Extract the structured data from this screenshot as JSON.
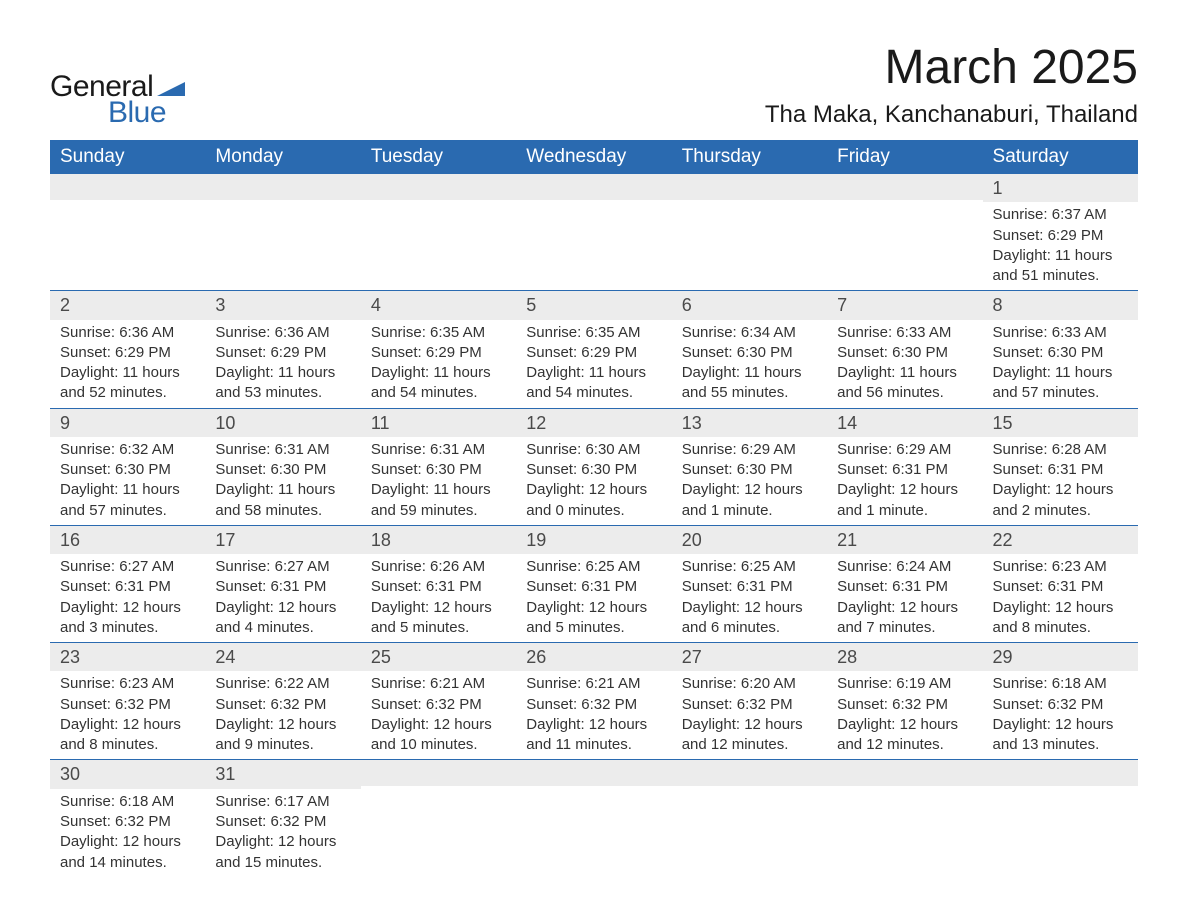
{
  "logo": {
    "text_general": "General",
    "text_blue": "Blue",
    "flag_color": "#2a6ab0"
  },
  "header": {
    "month_title": "March 2025",
    "location": "Tha Maka, Kanchanaburi, Thailand",
    "title_fontsize": 48,
    "location_fontsize": 24
  },
  "colors": {
    "header_bg": "#2a6ab0",
    "header_text": "#ffffff",
    "daynum_bg": "#ececec",
    "daynum_text": "#4a4a4a",
    "body_text": "#333333",
    "row_divider": "#2a6ab0",
    "page_bg": "#ffffff"
  },
  "typography": {
    "weekday_fontsize": 19,
    "daynum_fontsize": 18,
    "cell_fontsize": 15,
    "font_family": "Arial"
  },
  "weekdays": [
    "Sunday",
    "Monday",
    "Tuesday",
    "Wednesday",
    "Thursday",
    "Friday",
    "Saturday"
  ],
  "weeks": [
    [
      null,
      null,
      null,
      null,
      null,
      null,
      {
        "d": "1",
        "sr": "Sunrise: 6:37 AM",
        "ss": "Sunset: 6:29 PM",
        "dl1": "Daylight: 11 hours",
        "dl2": "and 51 minutes."
      }
    ],
    [
      {
        "d": "2",
        "sr": "Sunrise: 6:36 AM",
        "ss": "Sunset: 6:29 PM",
        "dl1": "Daylight: 11 hours",
        "dl2": "and 52 minutes."
      },
      {
        "d": "3",
        "sr": "Sunrise: 6:36 AM",
        "ss": "Sunset: 6:29 PM",
        "dl1": "Daylight: 11 hours",
        "dl2": "and 53 minutes."
      },
      {
        "d": "4",
        "sr": "Sunrise: 6:35 AM",
        "ss": "Sunset: 6:29 PM",
        "dl1": "Daylight: 11 hours",
        "dl2": "and 54 minutes."
      },
      {
        "d": "5",
        "sr": "Sunrise: 6:35 AM",
        "ss": "Sunset: 6:29 PM",
        "dl1": "Daylight: 11 hours",
        "dl2": "and 54 minutes."
      },
      {
        "d": "6",
        "sr": "Sunrise: 6:34 AM",
        "ss": "Sunset: 6:30 PM",
        "dl1": "Daylight: 11 hours",
        "dl2": "and 55 minutes."
      },
      {
        "d": "7",
        "sr": "Sunrise: 6:33 AM",
        "ss": "Sunset: 6:30 PM",
        "dl1": "Daylight: 11 hours",
        "dl2": "and 56 minutes."
      },
      {
        "d": "8",
        "sr": "Sunrise: 6:33 AM",
        "ss": "Sunset: 6:30 PM",
        "dl1": "Daylight: 11 hours",
        "dl2": "and 57 minutes."
      }
    ],
    [
      {
        "d": "9",
        "sr": "Sunrise: 6:32 AM",
        "ss": "Sunset: 6:30 PM",
        "dl1": "Daylight: 11 hours",
        "dl2": "and 57 minutes."
      },
      {
        "d": "10",
        "sr": "Sunrise: 6:31 AM",
        "ss": "Sunset: 6:30 PM",
        "dl1": "Daylight: 11 hours",
        "dl2": "and 58 minutes."
      },
      {
        "d": "11",
        "sr": "Sunrise: 6:31 AM",
        "ss": "Sunset: 6:30 PM",
        "dl1": "Daylight: 11 hours",
        "dl2": "and 59 minutes."
      },
      {
        "d": "12",
        "sr": "Sunrise: 6:30 AM",
        "ss": "Sunset: 6:30 PM",
        "dl1": "Daylight: 12 hours",
        "dl2": "and 0 minutes."
      },
      {
        "d": "13",
        "sr": "Sunrise: 6:29 AM",
        "ss": "Sunset: 6:30 PM",
        "dl1": "Daylight: 12 hours",
        "dl2": "and 1 minute."
      },
      {
        "d": "14",
        "sr": "Sunrise: 6:29 AM",
        "ss": "Sunset: 6:31 PM",
        "dl1": "Daylight: 12 hours",
        "dl2": "and 1 minute."
      },
      {
        "d": "15",
        "sr": "Sunrise: 6:28 AM",
        "ss": "Sunset: 6:31 PM",
        "dl1": "Daylight: 12 hours",
        "dl2": "and 2 minutes."
      }
    ],
    [
      {
        "d": "16",
        "sr": "Sunrise: 6:27 AM",
        "ss": "Sunset: 6:31 PM",
        "dl1": "Daylight: 12 hours",
        "dl2": "and 3 minutes."
      },
      {
        "d": "17",
        "sr": "Sunrise: 6:27 AM",
        "ss": "Sunset: 6:31 PM",
        "dl1": "Daylight: 12 hours",
        "dl2": "and 4 minutes."
      },
      {
        "d": "18",
        "sr": "Sunrise: 6:26 AM",
        "ss": "Sunset: 6:31 PM",
        "dl1": "Daylight: 12 hours",
        "dl2": "and 5 minutes."
      },
      {
        "d": "19",
        "sr": "Sunrise: 6:25 AM",
        "ss": "Sunset: 6:31 PM",
        "dl1": "Daylight: 12 hours",
        "dl2": "and 5 minutes."
      },
      {
        "d": "20",
        "sr": "Sunrise: 6:25 AM",
        "ss": "Sunset: 6:31 PM",
        "dl1": "Daylight: 12 hours",
        "dl2": "and 6 minutes."
      },
      {
        "d": "21",
        "sr": "Sunrise: 6:24 AM",
        "ss": "Sunset: 6:31 PM",
        "dl1": "Daylight: 12 hours",
        "dl2": "and 7 minutes."
      },
      {
        "d": "22",
        "sr": "Sunrise: 6:23 AM",
        "ss": "Sunset: 6:31 PM",
        "dl1": "Daylight: 12 hours",
        "dl2": "and 8 minutes."
      }
    ],
    [
      {
        "d": "23",
        "sr": "Sunrise: 6:23 AM",
        "ss": "Sunset: 6:32 PM",
        "dl1": "Daylight: 12 hours",
        "dl2": "and 8 minutes."
      },
      {
        "d": "24",
        "sr": "Sunrise: 6:22 AM",
        "ss": "Sunset: 6:32 PM",
        "dl1": "Daylight: 12 hours",
        "dl2": "and 9 minutes."
      },
      {
        "d": "25",
        "sr": "Sunrise: 6:21 AM",
        "ss": "Sunset: 6:32 PM",
        "dl1": "Daylight: 12 hours",
        "dl2": "and 10 minutes."
      },
      {
        "d": "26",
        "sr": "Sunrise: 6:21 AM",
        "ss": "Sunset: 6:32 PM",
        "dl1": "Daylight: 12 hours",
        "dl2": "and 11 minutes."
      },
      {
        "d": "27",
        "sr": "Sunrise: 6:20 AM",
        "ss": "Sunset: 6:32 PM",
        "dl1": "Daylight: 12 hours",
        "dl2": "and 12 minutes."
      },
      {
        "d": "28",
        "sr": "Sunrise: 6:19 AM",
        "ss": "Sunset: 6:32 PM",
        "dl1": "Daylight: 12 hours",
        "dl2": "and 12 minutes."
      },
      {
        "d": "29",
        "sr": "Sunrise: 6:18 AM",
        "ss": "Sunset: 6:32 PM",
        "dl1": "Daylight: 12 hours",
        "dl2": "and 13 minutes."
      }
    ],
    [
      {
        "d": "30",
        "sr": "Sunrise: 6:18 AM",
        "ss": "Sunset: 6:32 PM",
        "dl1": "Daylight: 12 hours",
        "dl2": "and 14 minutes."
      },
      {
        "d": "31",
        "sr": "Sunrise: 6:17 AM",
        "ss": "Sunset: 6:32 PM",
        "dl1": "Daylight: 12 hours",
        "dl2": "and 15 minutes."
      },
      null,
      null,
      null,
      null,
      null
    ]
  ]
}
